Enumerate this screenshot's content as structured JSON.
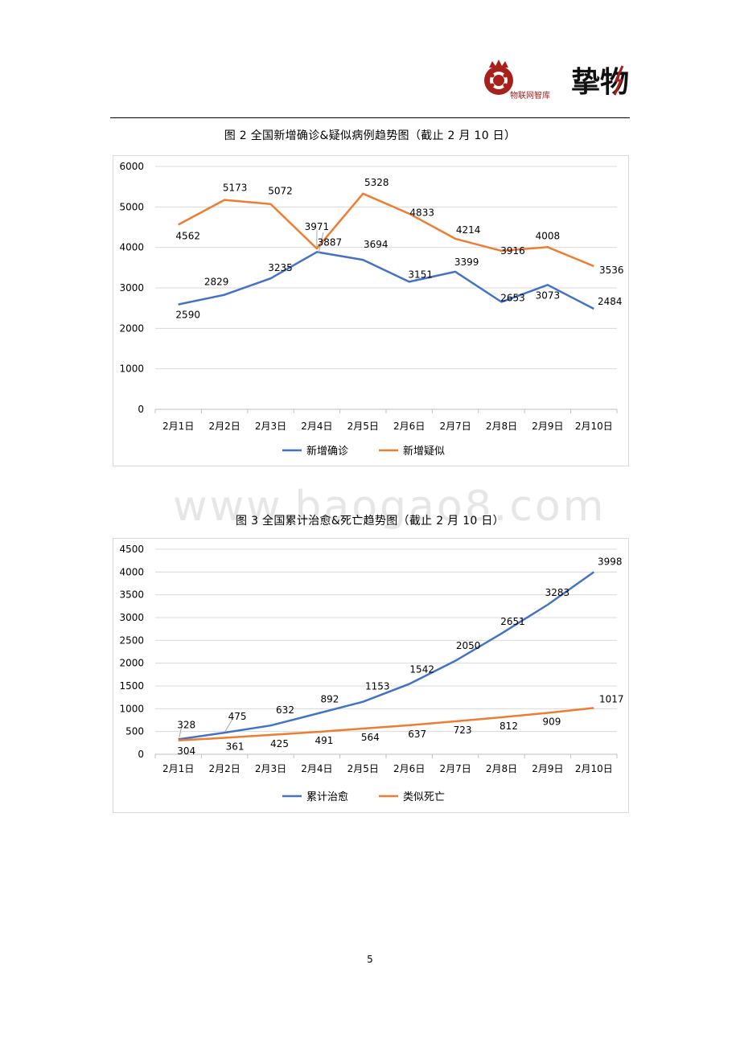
{
  "header": {
    "logo1_icon": "crown-gear-logo-icon",
    "logo1_text": "物联网智库",
    "logo2_text": "挚物"
  },
  "watermark": "www.baogao8.com",
  "page_number": "5",
  "colors": {
    "blue": "#4472C4",
    "orange": "#ED7D31",
    "grid": "#d9d9d9",
    "logo_red": "#a8201a"
  },
  "chart_data": [
    {
      "type": "line",
      "title": "图 2 全国新增确诊&疑似病例趋势图（截止 2 月 10 日）",
      "categories": [
        "2月1日",
        "2月2日",
        "2月3日",
        "2月4日",
        "2月5日",
        "2月6日",
        "2月7日",
        "2月8日",
        "2月9日",
        "2月10日"
      ],
      "ylim": [
        0,
        6000
      ],
      "yticks": [
        0,
        1000,
        2000,
        3000,
        4000,
        5000,
        6000
      ],
      "grid": true,
      "legend": "bottom",
      "series": [
        {
          "name": "新增确诊",
          "color": "#4472C4",
          "values": [
            2590,
            2829,
            3235,
            3887,
            3694,
            3151,
            3399,
            2653,
            3073,
            2484
          ]
        },
        {
          "name": "新增疑似",
          "color": "#ED7D31",
          "values": [
            4562,
            5173,
            5072,
            3971,
            5328,
            4833,
            4214,
            3916,
            4008,
            3536
          ]
        }
      ]
    },
    {
      "type": "line",
      "title": "图 3 全国累计治愈&死亡趋势图（截止 2 月 10 日）",
      "categories": [
        "2月1日",
        "2月2日",
        "2月3日",
        "2月4日",
        "2月5日",
        "2月6日",
        "2月7日",
        "2月8日",
        "2月9日",
        "2月10日"
      ],
      "ylim": [
        0,
        4500
      ],
      "yticks": [
        0,
        500,
        1000,
        1500,
        2000,
        2500,
        3000,
        3500,
        4000,
        4500
      ],
      "grid": true,
      "legend": "bottom",
      "series": [
        {
          "name": "累计治愈",
          "color": "#4472C4",
          "values": [
            328,
            475,
            632,
            892,
            1153,
            1542,
            2050,
            2651,
            3283,
            3998
          ]
        },
        {
          "name": "类似死亡",
          "color": "#ED7D31",
          "values": [
            304,
            361,
            425,
            491,
            564,
            637,
            723,
            812,
            909,
            1017
          ]
        }
      ]
    }
  ]
}
